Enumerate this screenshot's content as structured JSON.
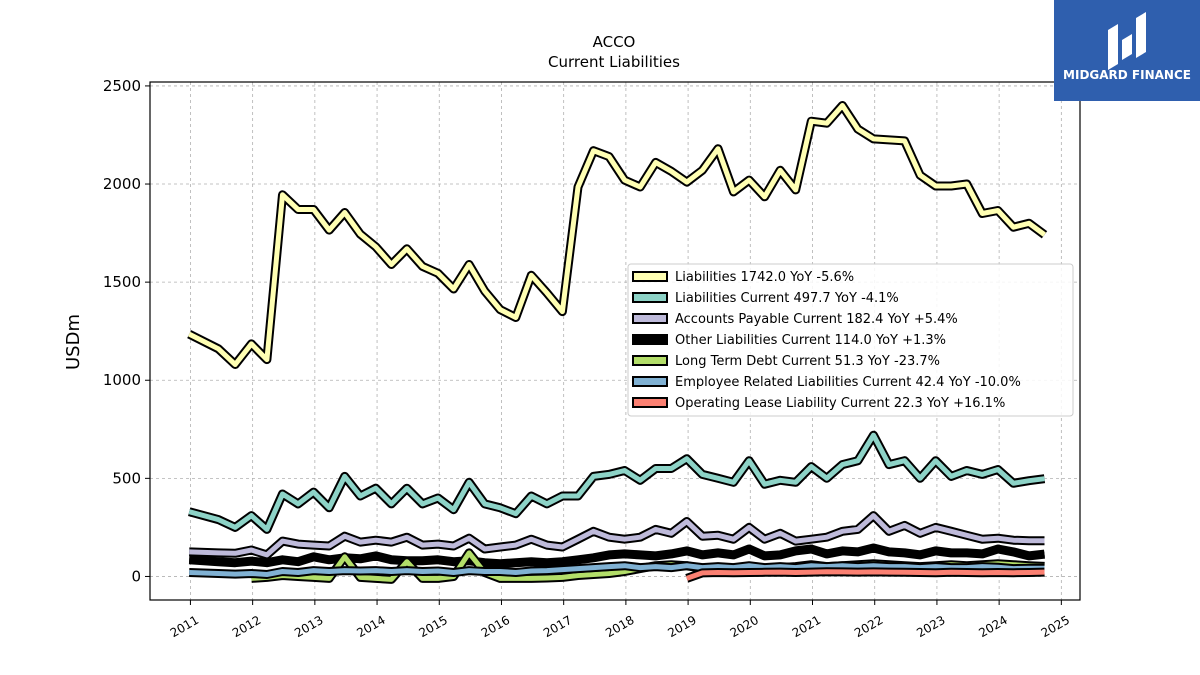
{
  "logo": {
    "text": "MIDGARD FINANCE"
  },
  "chart_data": {
    "type": "line",
    "title": "ACCO",
    "subtitle": "Current  Liabilities",
    "ylabel": "USDm",
    "xlabel": "",
    "ylim": [
      -120,
      2520
    ],
    "xlim": [
      2010.35,
      2025.3
    ],
    "yticks": [
      0,
      500,
      1000,
      1500,
      2000,
      2500
    ],
    "xticks": [
      2011,
      2012,
      2013,
      2014,
      2015,
      2016,
      2017,
      2018,
      2019,
      2020,
      2021,
      2022,
      2023,
      2024,
      2025
    ],
    "grid": true,
    "legend_position": "center-right",
    "series": [
      {
        "name": "Liabilities",
        "legend": "Liabilities  1742.0 YoY -5.6%",
        "color": "#ffffb3",
        "x": [
          2010.98,
          2011.45,
          2011.72,
          2011.98,
          2012.23,
          2012.48,
          2012.73,
          2012.98,
          2013.23,
          2013.48,
          2013.73,
          2013.98,
          2014.23,
          2014.48,
          2014.73,
          2014.98,
          2015.23,
          2015.48,
          2015.73,
          2015.98,
          2016.23,
          2016.48,
          2016.73,
          2016.98,
          2017.23,
          2017.48,
          2017.73,
          2017.98,
          2018.23,
          2018.48,
          2018.73,
          2018.98,
          2019.23,
          2019.48,
          2019.73,
          2019.98,
          2020.23,
          2020.48,
          2020.73,
          2020.98,
          2021.23,
          2021.48,
          2021.73,
          2021.98,
          2022.23,
          2022.48,
          2022.73,
          2022.98,
          2023.23,
          2023.48,
          2023.73,
          2023.98,
          2024.23,
          2024.48,
          2024.73
        ],
        "values": [
          1235,
          1160,
          1080,
          1185,
          1105,
          1945,
          1870,
          1870,
          1765,
          1855,
          1745,
          1680,
          1590,
          1670,
          1580,
          1545,
          1465,
          1590,
          1455,
          1360,
          1320,
          1535,
          1445,
          1350,
          1985,
          2170,
          2140,
          2020,
          1985,
          2110,
          2065,
          2010,
          2070,
          2180,
          1960,
          2020,
          1935,
          2070,
          1970,
          2320,
          2310,
          2400,
          2280,
          2230,
          2225,
          2220,
          2045,
          1990,
          1990,
          2000,
          1850,
          1865,
          1780,
          1800,
          1742
        ]
      },
      {
        "name": "Liabilities Current",
        "legend": "Liabilities Current  497.7 YoY -4.1%",
        "color": "#8dd3c7",
        "x": [
          2010.98,
          2011.45,
          2011.72,
          2011.98,
          2012.23,
          2012.48,
          2012.73,
          2012.98,
          2013.23,
          2013.48,
          2013.73,
          2013.98,
          2014.23,
          2014.48,
          2014.73,
          2014.98,
          2015.23,
          2015.48,
          2015.73,
          2015.98,
          2016.23,
          2016.48,
          2016.73,
          2016.98,
          2017.23,
          2017.48,
          2017.73,
          2017.98,
          2018.23,
          2018.48,
          2018.73,
          2018.98,
          2019.23,
          2019.48,
          2019.73,
          2019.98,
          2020.23,
          2020.48,
          2020.73,
          2020.98,
          2021.23,
          2021.48,
          2021.73,
          2021.98,
          2022.23,
          2022.48,
          2022.73,
          2022.98,
          2023.23,
          2023.48,
          2023.73,
          2023.98,
          2024.23,
          2024.48,
          2024.73
        ],
        "values": [
          330,
          290,
          250,
          310,
          240,
          420,
          370,
          430,
          350,
          510,
          410,
          450,
          370,
          450,
          370,
          400,
          340,
          480,
          370,
          350,
          320,
          410,
          370,
          410,
          410,
          510,
          520,
          540,
          490,
          550,
          550,
          600,
          520,
          500,
          480,
          590,
          470,
          490,
          480,
          560,
          500,
          570,
          590,
          720,
          570,
          590,
          500,
          590,
          510,
          540,
          520,
          545,
          475,
          488,
          498
        ]
      },
      {
        "name": "Accounts Payable Current",
        "legend": "Accounts Payable Current  182.4 YoY +5.4%",
        "color": "#bebada",
        "x": [
          2010.98,
          2011.45,
          2011.72,
          2011.98,
          2012.23,
          2012.48,
          2012.73,
          2012.98,
          2013.23,
          2013.48,
          2013.73,
          2013.98,
          2014.23,
          2014.48,
          2014.73,
          2014.98,
          2015.23,
          2015.48,
          2015.73,
          2015.98,
          2016.23,
          2016.48,
          2016.73,
          2016.98,
          2017.23,
          2017.48,
          2017.73,
          2017.98,
          2018.23,
          2018.48,
          2018.73,
          2018.98,
          2019.23,
          2019.48,
          2019.73,
          2019.98,
          2020.23,
          2020.48,
          2020.73,
          2020.98,
          2021.23,
          2021.48,
          2021.73,
          2021.98,
          2022.23,
          2022.48,
          2022.73,
          2022.98,
          2023.23,
          2023.48,
          2023.73,
          2023.98,
          2024.23,
          2024.48,
          2024.73
        ],
        "values": [
          125,
          120,
          118,
          135,
          110,
          180,
          165,
          160,
          155,
          205,
          175,
          185,
          175,
          200,
          160,
          165,
          155,
          195,
          140,
          150,
          160,
          190,
          160,
          150,
          190,
          230,
          200,
          190,
          200,
          240,
          220,
          280,
          205,
          210,
          190,
          250,
          190,
          220,
          180,
          190,
          200,
          230,
          240,
          310,
          230,
          260,
          220,
          250,
          230,
          210,
          190,
          195,
          185,
          182,
          182
        ]
      },
      {
        "name": "Other Liabilities Current",
        "legend": "Other Liabilities Current  114.0 YoY +1.3%",
        "color": "#000000",
        "x": [
          2010.98,
          2011.45,
          2011.72,
          2011.98,
          2012.23,
          2012.48,
          2012.73,
          2012.98,
          2013.23,
          2013.48,
          2013.73,
          2013.98,
          2014.23,
          2014.48,
          2014.73,
          2014.98,
          2015.23,
          2015.48,
          2015.73,
          2015.98,
          2016.23,
          2016.48,
          2016.73,
          2016.98,
          2017.23,
          2017.48,
          2017.73,
          2017.98,
          2018.23,
          2018.48,
          2018.73,
          2018.98,
          2019.23,
          2019.48,
          2019.73,
          2019.98,
          2020.23,
          2020.48,
          2020.73,
          2020.98,
          2021.23,
          2021.48,
          2021.73,
          2021.98,
          2022.23,
          2022.48,
          2022.73,
          2022.98,
          2023.23,
          2023.48,
          2023.73,
          2023.98,
          2024.23,
          2024.48,
          2024.73
        ],
        "values": [
          85,
          75,
          70,
          78,
          70,
          85,
          75,
          100,
          85,
          95,
          90,
          105,
          85,
          80,
          80,
          85,
          75,
          80,
          70,
          65,
          70,
          75,
          70,
          75,
          85,
          95,
          110,
          115,
          110,
          105,
          115,
          130,
          110,
          120,
          110,
          140,
          105,
          110,
          130,
          140,
          115,
          130,
          125,
          145,
          125,
          120,
          110,
          130,
          120,
          120,
          115,
          140,
          125,
          105,
          114
        ]
      },
      {
        "name": "Long Term Debt Current",
        "legend": "Long Term Debt Current  51.3 YoY -23.7%",
        "color": "#b3de69",
        "x": [
          2011.98,
          2012.23,
          2012.48,
          2012.73,
          2012.98,
          2013.23,
          2013.48,
          2013.73,
          2013.98,
          2014.23,
          2014.48,
          2014.73,
          2014.98,
          2015.23,
          2015.48,
          2015.73,
          2015.98,
          2016.23,
          2016.48,
          2016.73,
          2016.98,
          2017.23,
          2017.48,
          2017.73,
          2017.98,
          2018.23,
          2018.48,
          2018.73,
          2018.98,
          2019.23,
          2019.48,
          2019.73,
          2019.98,
          2020.23,
          2020.48,
          2020.73,
          2020.98,
          2021.23,
          2021.48,
          2021.73,
          2021.98,
          2022.23,
          2022.48,
          2022.73,
          2022.98,
          2023.23,
          2023.48,
          2023.73,
          2023.98,
          2024.23,
          2024.48,
          2024.73
        ],
        "values": [
          -10,
          -5,
          5,
          0,
          -5,
          -10,
          100,
          -5,
          -10,
          -15,
          75,
          -10,
          -10,
          0,
          120,
          20,
          -10,
          -10,
          -10,
          -8,
          -5,
          5,
          10,
          15,
          25,
          40,
          55,
          60,
          55,
          40,
          30,
          30,
          30,
          40,
          45,
          50,
          60,
          50,
          55,
          60,
          65,
          60,
          55,
          50,
          55,
          60,
          55,
          60,
          65,
          60,
          55,
          51
        ]
      },
      {
        "name": "Employee Related Liabilities Current",
        "legend": "Employee Related Liabilities Current  42.4 YoY -10.0%",
        "color": "#80b1d3",
        "x": [
          2010.98,
          2011.45,
          2011.72,
          2011.98,
          2012.23,
          2012.48,
          2012.73,
          2012.98,
          2013.23,
          2013.48,
          2013.73,
          2013.98,
          2014.23,
          2014.48,
          2014.73,
          2014.98,
          2015.23,
          2015.48,
          2015.73,
          2015.98,
          2016.23,
          2016.48,
          2016.73,
          2016.98,
          2017.23,
          2017.48,
          2017.73,
          2017.98,
          2018.23,
          2018.48,
          2018.73,
          2018.98,
          2019.23,
          2019.48,
          2019.73,
          2019.98,
          2020.23,
          2020.48,
          2020.73,
          2020.98,
          2021.23,
          2021.48,
          2021.73,
          2021.98,
          2022.23,
          2022.48,
          2022.73,
          2022.98,
          2023.23,
          2023.48,
          2023.73,
          2023.98,
          2024.23,
          2024.48,
          2024.73
        ],
        "values": [
          20,
          15,
          12,
          15,
          10,
          25,
          20,
          30,
          25,
          30,
          28,
          30,
          25,
          30,
          25,
          28,
          20,
          30,
          25,
          25,
          20,
          28,
          30,
          35,
          40,
          45,
          50,
          55,
          45,
          50,
          45,
          55,
          45,
          50,
          45,
          55,
          45,
          50,
          45,
          55,
          50,
          55,
          50,
          55,
          50,
          50,
          45,
          50,
          45,
          45,
          50,
          47,
          40,
          42,
          42
        ]
      },
      {
        "name": "Operating Lease Liability Current",
        "legend": "Operating Lease Liability Current  22.3 YoY +16.1%",
        "color": "#fb8072",
        "x": [
          2018.98,
          2019.23,
          2019.48,
          2019.73,
          2019.98,
          2020.23,
          2020.48,
          2020.73,
          2020.98,
          2021.23,
          2021.48,
          2021.73,
          2021.98,
          2022.23,
          2022.48,
          2022.73,
          2022.98,
          2023.23,
          2023.48,
          2023.73,
          2023.98,
          2024.23,
          2024.48,
          2024.73
        ],
        "values": [
          -10,
          18,
          20,
          19,
          20,
          21,
          22,
          20,
          22,
          24,
          23,
          22,
          23,
          22,
          21,
          20,
          19,
          21,
          20,
          19,
          20,
          19,
          20,
          22
        ]
      }
    ]
  }
}
